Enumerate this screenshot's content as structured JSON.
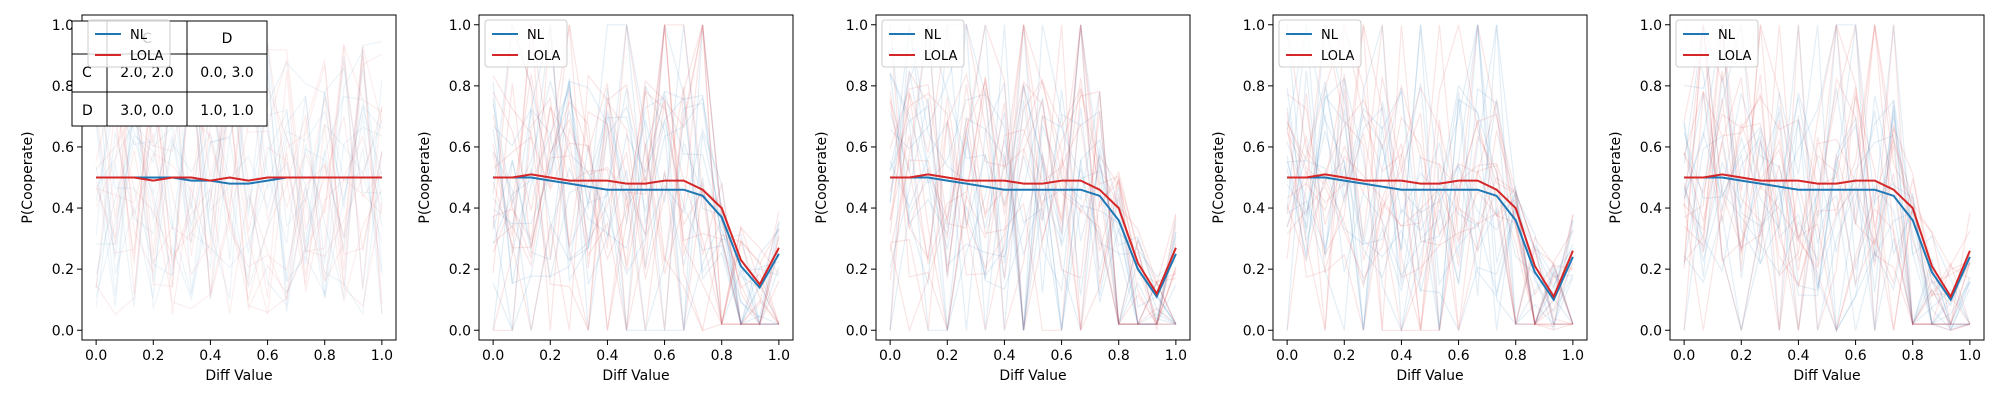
{
  "colors": {
    "nl": "#1f77b4",
    "lola": "#d62728",
    "background": "#ffffff"
  },
  "payoff_table": {
    "col_headers": [
      "C",
      "D"
    ],
    "rows": [
      {
        "label": "C",
        "cells": [
          "2.0, 2.0",
          "0.0, 3.0"
        ]
      },
      {
        "label": "D",
        "cells": [
          "3.0, 0.0",
          "1.0, 1.0"
        ]
      }
    ]
  },
  "chart_data": [
    {
      "type": "line",
      "title": "",
      "xlabel": "Diff Value",
      "ylabel": "P(Cooperate)",
      "xlim": [
        0,
        1
      ],
      "ylim": [
        0,
        1
      ],
      "x_ticks": [
        "0.0",
        "0.2",
        "0.4",
        "0.6",
        "0.8",
        "1.0"
      ],
      "y_ticks": [
        "0.0",
        "0.2",
        "0.4",
        "0.6",
        "0.8",
        "1.0"
      ],
      "grid": false,
      "legend": "top-left",
      "x": [
        0,
        0.067,
        0.133,
        0.2,
        0.267,
        0.333,
        0.4,
        0.467,
        0.533,
        0.6,
        0.667,
        0.733,
        0.8,
        0.867,
        0.933,
        1.0
      ],
      "series": [
        {
          "name": "NL",
          "values": [
            0.5,
            0.5,
            0.5,
            0.5,
            0.5,
            0.49,
            0.49,
            0.48,
            0.48,
            0.49,
            0.5,
            0.5,
            0.5,
            0.5,
            0.5,
            0.5
          ]
        },
        {
          "name": "LOLA",
          "values": [
            0.5,
            0.5,
            0.5,
            0.49,
            0.5,
            0.5,
            0.49,
            0.5,
            0.49,
            0.5,
            0.5,
            0.5,
            0.5,
            0.5,
            0.5,
            0.5
          ]
        }
      ]
    },
    {
      "type": "line",
      "title": "",
      "xlabel": "Diff Value",
      "ylabel": "P(Cooperate)",
      "xlim": [
        0,
        1
      ],
      "ylim": [
        0,
        1
      ],
      "x_ticks": [
        "0.0",
        "0.2",
        "0.4",
        "0.6",
        "0.8",
        "1.0"
      ],
      "y_ticks": [
        "0.0",
        "0.2",
        "0.4",
        "0.6",
        "0.8",
        "1.0"
      ],
      "grid": false,
      "legend": "top-left",
      "x": [
        0,
        0.067,
        0.133,
        0.2,
        0.267,
        0.333,
        0.4,
        0.467,
        0.533,
        0.6,
        0.667,
        0.733,
        0.8,
        0.867,
        0.933,
        1.0
      ],
      "series": [
        {
          "name": "NL",
          "values": [
            0.5,
            0.5,
            0.5,
            0.49,
            0.48,
            0.47,
            0.46,
            0.46,
            0.46,
            0.46,
            0.46,
            0.44,
            0.37,
            0.21,
            0.14,
            0.25
          ]
        },
        {
          "name": "LOLA",
          "values": [
            0.5,
            0.5,
            0.51,
            0.5,
            0.49,
            0.49,
            0.49,
            0.48,
            0.48,
            0.49,
            0.49,
            0.46,
            0.4,
            0.23,
            0.15,
            0.27
          ]
        }
      ]
    },
    {
      "type": "line",
      "title": "",
      "xlabel": "Diff Value",
      "ylabel": "P(Cooperate)",
      "xlim": [
        0,
        1
      ],
      "ylim": [
        0,
        1
      ],
      "x_ticks": [
        "0.0",
        "0.2",
        "0.4",
        "0.6",
        "0.8",
        "1.0"
      ],
      "y_ticks": [
        "0.0",
        "0.2",
        "0.4",
        "0.6",
        "0.8",
        "1.0"
      ],
      "grid": false,
      "legend": "top-left",
      "x": [
        0,
        0.067,
        0.133,
        0.2,
        0.267,
        0.333,
        0.4,
        0.467,
        0.533,
        0.6,
        0.667,
        0.733,
        0.8,
        0.867,
        0.933,
        1.0
      ],
      "series": [
        {
          "name": "NL",
          "values": [
            0.5,
            0.5,
            0.5,
            0.49,
            0.48,
            0.47,
            0.46,
            0.46,
            0.46,
            0.46,
            0.46,
            0.44,
            0.36,
            0.2,
            0.11,
            0.25
          ]
        },
        {
          "name": "LOLA",
          "values": [
            0.5,
            0.5,
            0.51,
            0.5,
            0.49,
            0.49,
            0.49,
            0.48,
            0.48,
            0.49,
            0.49,
            0.46,
            0.4,
            0.22,
            0.12,
            0.27
          ]
        }
      ]
    },
    {
      "type": "line",
      "title": "",
      "xlabel": "Diff Value",
      "ylabel": "P(Cooperate)",
      "xlim": [
        0,
        1
      ],
      "ylim": [
        0,
        1
      ],
      "x_ticks": [
        "0.0",
        "0.2",
        "0.4",
        "0.6",
        "0.8",
        "1.0"
      ],
      "y_ticks": [
        "0.0",
        "0.2",
        "0.4",
        "0.6",
        "0.8",
        "1.0"
      ],
      "grid": false,
      "legend": "top-left",
      "x": [
        0,
        0.067,
        0.133,
        0.2,
        0.267,
        0.333,
        0.4,
        0.467,
        0.533,
        0.6,
        0.667,
        0.733,
        0.8,
        0.867,
        0.933,
        1.0
      ],
      "series": [
        {
          "name": "NL",
          "values": [
            0.5,
            0.5,
            0.5,
            0.49,
            0.48,
            0.47,
            0.46,
            0.46,
            0.46,
            0.46,
            0.46,
            0.44,
            0.36,
            0.19,
            0.1,
            0.24
          ]
        },
        {
          "name": "LOLA",
          "values": [
            0.5,
            0.5,
            0.51,
            0.5,
            0.49,
            0.49,
            0.49,
            0.48,
            0.48,
            0.49,
            0.49,
            0.46,
            0.4,
            0.21,
            0.11,
            0.26
          ]
        }
      ]
    },
    {
      "type": "line",
      "title": "",
      "xlabel": "Diff Value",
      "ylabel": "P(Cooperate)",
      "xlim": [
        0,
        1
      ],
      "ylim": [
        0,
        1
      ],
      "x_ticks": [
        "0.0",
        "0.2",
        "0.4",
        "0.6",
        "0.8",
        "1.0"
      ],
      "y_ticks": [
        "0.0",
        "0.2",
        "0.4",
        "0.6",
        "0.8",
        "1.0"
      ],
      "grid": false,
      "legend": "top-left",
      "x": [
        0,
        0.067,
        0.133,
        0.2,
        0.267,
        0.333,
        0.4,
        0.467,
        0.533,
        0.6,
        0.667,
        0.733,
        0.8,
        0.867,
        0.933,
        1.0
      ],
      "series": [
        {
          "name": "NL",
          "values": [
            0.5,
            0.5,
            0.5,
            0.49,
            0.48,
            0.47,
            0.46,
            0.46,
            0.46,
            0.46,
            0.46,
            0.44,
            0.36,
            0.19,
            0.1,
            0.24
          ]
        },
        {
          "name": "LOLA",
          "values": [
            0.5,
            0.5,
            0.51,
            0.5,
            0.49,
            0.49,
            0.49,
            0.48,
            0.48,
            0.49,
            0.49,
            0.46,
            0.4,
            0.21,
            0.11,
            0.26
          ]
        }
      ]
    }
  ]
}
